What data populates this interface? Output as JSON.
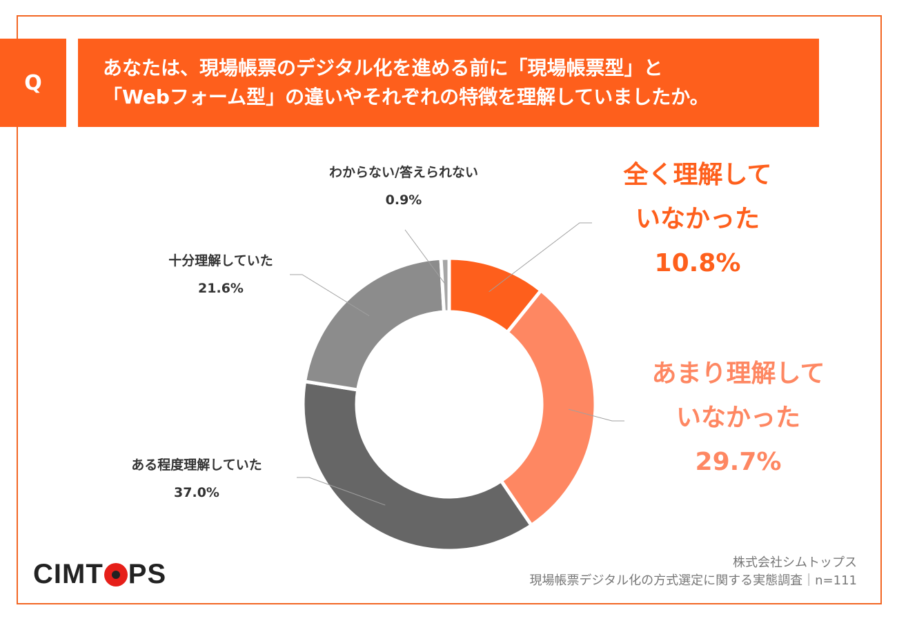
{
  "question": {
    "badge": "Q",
    "line1": "あなたは、現場帳票のデジタル化を進める前に「現場帳票型」と",
    "line2": "「Webフォーム型」の違いやそれぞれの特徴を理解していましたか。"
  },
  "colors": {
    "frame": "#f26522",
    "banner": "#fe5f1c",
    "slice_orange": "#fe5f1c",
    "slice_salmon": "#fe8762",
    "slice_light_gray": "#8c8c8c",
    "slice_dark_gray": "#666666",
    "slice_pale": "#a6a6a6"
  },
  "chart_data": {
    "type": "pie",
    "variant": "donut",
    "start": "12 o'clock, clockwise",
    "slices": [
      {
        "name": "全く理解していなかった",
        "value": 10.8,
        "label": "10.8%",
        "text_lines": [
          "全く理解して",
          "いなかった"
        ],
        "color": "#fe5f1c",
        "text_color": "#fe5f1c"
      },
      {
        "name": "あまり理解していなかった",
        "value": 29.7,
        "label": "29.7%",
        "text_lines": [
          "あまり理解して",
          "いなかった"
        ],
        "color": "#fe8762",
        "text_color": "#fe8762"
      },
      {
        "name": "ある程度理解していた",
        "value": 37.0,
        "label": "37.0%",
        "text_lines": [
          "ある程度理解していた"
        ],
        "color": "#666666",
        "text_color": "#333333"
      },
      {
        "name": "十分理解していた",
        "value": 21.6,
        "label": "21.6%",
        "text_lines": [
          "十分理解していた"
        ],
        "color": "#8c8c8c",
        "text_color": "#333333"
      },
      {
        "name": "わからない/答えられない",
        "value": 0.9,
        "label": "0.9%",
        "text_lines": [
          "わからない/答えられない"
        ],
        "color": "#a6a6a6",
        "text_color": "#333333"
      }
    ]
  },
  "footer": {
    "logo_left": "CIMT",
    "logo_right": "PS",
    "company": "株式会社シムトップス",
    "survey": "現場帳票デジタル化の方式選定に関する実態調査｜n=111"
  }
}
